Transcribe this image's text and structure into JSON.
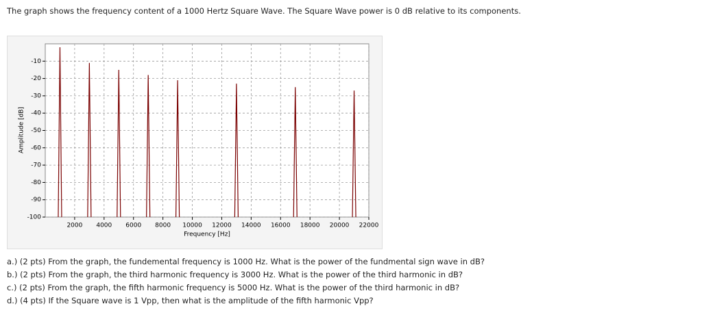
{
  "header": {
    "text": "The graph shows the frequency content of a 1000 Hertz Square Wave. The Square Wave power is 0 dB relative to its components."
  },
  "chart_data": {
    "type": "stem",
    "x_label": "Frequency [Hz]",
    "y_label": "Amplitude [dB]",
    "x": [
      1000,
      3000,
      5000,
      7000,
      9000,
      13000,
      17000,
      21000
    ],
    "values": [
      -2,
      -11,
      -15,
      -18,
      -21,
      -23,
      -25,
      -27
    ],
    "color": "#7a0000",
    "xlim": [
      0,
      22000
    ],
    "xticks": [
      2000,
      4000,
      6000,
      8000,
      10000,
      12000,
      14000,
      16000,
      18000,
      20000,
      22000
    ],
    "ylim": [
      -100,
      0
    ],
    "yticks": [
      -10,
      -20,
      -30,
      -40,
      -50,
      -60,
      -70,
      -80,
      -90,
      -100
    ],
    "grid": true
  },
  "questions": [
    "a.) (2 pts) From the graph, the fundemental frequency is 1000 Hz. What is the power of the fundmental sign wave in dB?",
    "b.) (2 pts) From the graph, the third harmonic frequency is 3000 Hz. What is the power of the third harmonic in dB?",
    "c.) (2 pts) From the graph, the fifth harmonic frequency is 5000 Hz. What is the power of the third harmonic in dB?",
    "d.) (4 pts) If the Square wave is 1 Vpp, then what is the amplitude of the fifth harmonic Vpp?"
  ]
}
